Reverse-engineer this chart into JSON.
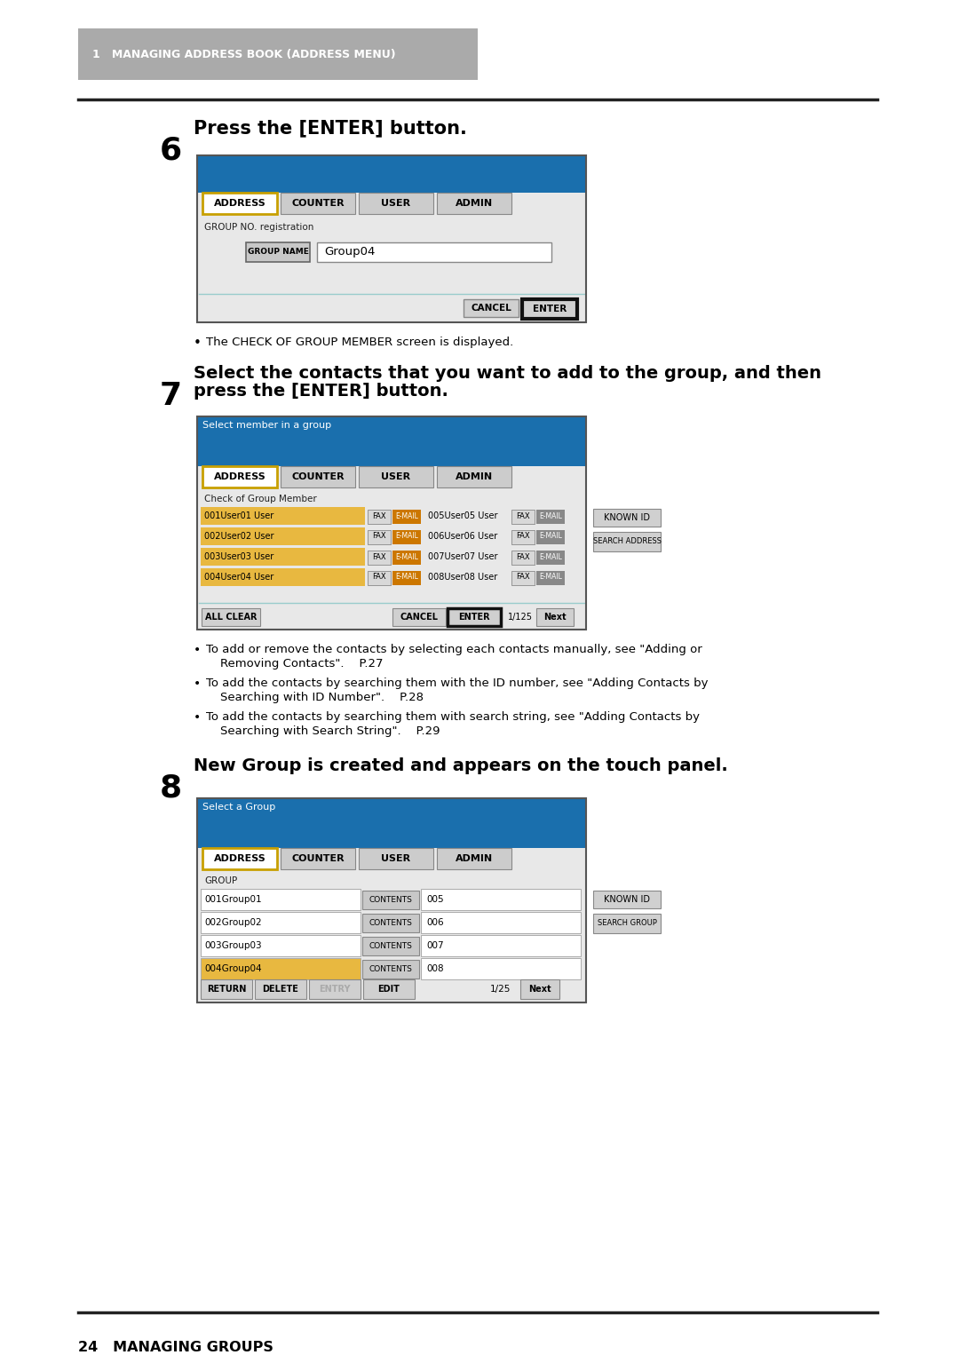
{
  "page_bg": "#ffffff",
  "header_bg": "#aaaaaa",
  "header_text": "1   MANAGING ADDRESS BOOK (ADDRESS MENU)",
  "header_text_color": "#ffffff",
  "footer_text": "24   MANAGING GROUPS",
  "blue_header": "#1a6fad",
  "tab_active_bg": "#ffffff",
  "tab_inactive_bg": "#cccccc",
  "tab_border": "#888888",
  "screen_bg": "#e8e8e8",
  "input_bg": "#ffffff",
  "orange_highlight": "#c8a000",
  "yellow_row": "#e8b840",
  "step6_num": "6",
  "step6_text": "Press the [ENTER] button.",
  "step7_num": "7",
  "step7_line1": "Select the contacts that you want to add to the group, and then",
  "step7_line2": "press the [ENTER] button.",
  "step8_num": "8",
  "step8_text": "New Group is created and appears on the touch panel.",
  "bullet1": "The CHECK OF GROUP MEMBER screen is displayed.",
  "bullet2_line1": "To add or remove the contacts by selecting each contacts manually, see \"Adding or",
  "bullet2_line2": "Removing Contacts\".    P.27",
  "bullet3_line1": "To add the contacts by searching them with the ID number, see \"Adding Contacts by",
  "bullet3_line2": "Searching with ID Number\".    P.28",
  "bullet4_line1": "To add the contacts by searching them with search string, see \"Adding Contacts by",
  "bullet4_line2": "Searching with Search String\".    P.29",
  "tabs": [
    "ADDRESS",
    "COUNTER",
    "USER",
    "ADMIN"
  ],
  "user_rows_left": [
    "001User01 User",
    "002User02 User",
    "003User03 User",
    "004User04 User"
  ],
  "user_rows_right": [
    "005User05 User",
    "006User06 User",
    "007User07 User",
    "008User08 User"
  ],
  "group_rows": [
    {
      "name": "001Group01",
      "num": "005",
      "highlighted": false
    },
    {
      "name": "002Group02",
      "num": "006",
      "highlighted": false
    },
    {
      "name": "003Group03",
      "num": "007",
      "highlighted": false
    },
    {
      "name": "004Group04",
      "num": "008",
      "highlighted": true
    }
  ]
}
